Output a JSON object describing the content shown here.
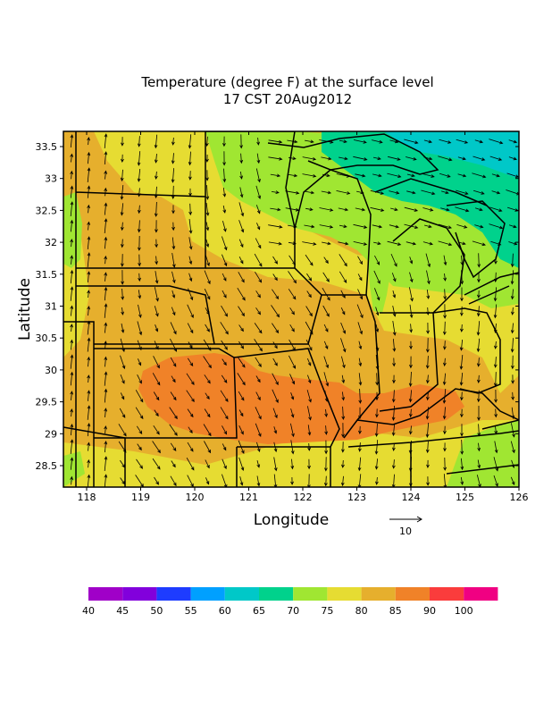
{
  "title_line1": "Temperature (degree F) at the surface level",
  "title_line2": "17 CST 20Aug2012",
  "xlabel": "Longitude",
  "ylabel": "Latitude",
  "x_ticks": [
    "118",
    "119",
    "120",
    "121",
    "122",
    "123",
    "124",
    "125",
    "126"
  ],
  "y_ticks": [
    "33.5",
    "33",
    "32.5",
    "32",
    "31.5",
    "31",
    "30.5",
    "30",
    "29.5",
    "29",
    "28.5"
  ],
  "vector_scale_label": "10",
  "colorbar": {
    "colors": [
      "#a000c8",
      "#8200dc",
      "#1e3cff",
      "#00a0ff",
      "#00c8c8",
      "#00d28c",
      "#a0e632",
      "#e6dc32",
      "#e6af2d",
      "#f08228",
      "#fa3c3c",
      "#f00082"
    ],
    "labels": [
      "40",
      "45",
      "50",
      "55",
      "60",
      "65",
      "70",
      "75",
      "80",
      "85",
      "90",
      "100"
    ]
  },
  "legend": {
    "temperature_colors": {
      "70-75": "#a0e632",
      "75-80": "#e6dc32",
      "80-85": "#e6af2d",
      "85-90": "#f08228",
      "60-65": "#00c8c8",
      "65-70": "#00d28c"
    }
  }
}
